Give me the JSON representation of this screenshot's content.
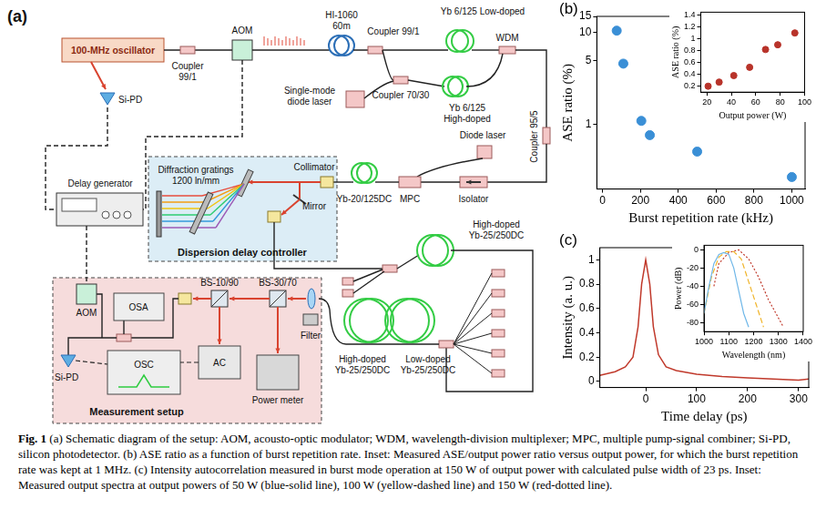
{
  "diagram": {
    "labels": [
      {
        "text": "(a)"
      },
      {
        "text": "100-MHz oscillator"
      },
      {
        "text": "Si-PD"
      },
      {
        "lines": [
          "Coupler",
          "99/1"
        ]
      },
      {
        "text": "AOM"
      },
      {
        "lines": [
          "HI-1060",
          "60m"
        ]
      },
      {
        "text": "Coupler 99/1"
      },
      {
        "text": "Yb 6/125 Low-doped"
      },
      {
        "text": "WDM"
      },
      {
        "text": "Coupler 70/30"
      },
      {
        "lines": [
          "Single-mode",
          "diode laser"
        ]
      },
      {
        "lines": [
          "Yb 6/125",
          "High-doped"
        ]
      },
      {
        "text": "Coupler 95/5"
      },
      {
        "text": "Diode laser"
      },
      {
        "text": "MPC"
      },
      {
        "text": "Isolator"
      },
      {
        "text": "Yb-20/125DC"
      },
      {
        "text": "Collimator"
      },
      {
        "lines": [
          "Diffraction gratings",
          "1200 ln/mm"
        ]
      },
      {
        "text": "Mirror"
      },
      {
        "text": "Dispersion delay controller"
      },
      {
        "text": "Delay generator"
      },
      {
        "lines": [
          "High-doped",
          "Yb-25/250DC"
        ]
      },
      {
        "text": "AOM"
      },
      {
        "text": "Measurement setup"
      },
      {
        "text": "OSA"
      },
      {
        "text": "BS-10/90"
      },
      {
        "text": "BS-30/70"
      },
      {
        "text": "Filter"
      },
      {
        "lines": [
          "High-doped",
          "Yb-25/250DC"
        ]
      },
      {
        "lines": [
          "Low-doped",
          "Yb-25/250DC"
        ]
      },
      {
        "text": "OSC"
      },
      {
        "text": "AC"
      },
      {
        "text": "Power meter"
      },
      {
        "text": "Si-PD"
      }
    ]
  },
  "chart_data": [
    {
      "type": "scatter",
      "title": "(b)",
      "x_label": "Burst repetition rate (kHz)",
      "y_label": "ASE ratio (%)",
      "x": [
        75,
        110,
        205,
        250,
        500,
        1000
      ],
      "values": [
        10.5,
        4.6,
        1.1,
        0.77,
        0.51,
        0.27
      ],
      "color": "#3a8fd6",
      "marker": "circle",
      "xlim": [
        -30,
        1070
      ],
      "ylim": [
        0.2,
        15
      ],
      "xticks": [
        0,
        200,
        400,
        600,
        800,
        1000
      ],
      "yticks": [
        1,
        5,
        10,
        15
      ],
      "log": "y",
      "grid": false
    },
    {
      "type": "scatter",
      "x_label": "Output power (W)",
      "y_label": "ASE ratio (%)",
      "x": [
        21,
        30,
        42,
        55,
        68,
        78,
        92
      ],
      "values": [
        0.2,
        0.27,
        0.38,
        0.52,
        0.82,
        0.9,
        1.1
      ],
      "color": "#b8332a",
      "marker": "circle",
      "xlim": [
        15,
        100
      ],
      "ylim": [
        0.1,
        1.45
      ],
      "xticks": [
        20,
        40,
        60,
        80,
        100
      ],
      "yticks": [
        0.2,
        0.4,
        0.6,
        0.8,
        1,
        1.2,
        1.4
      ],
      "grid": false
    },
    {
      "type": "line",
      "title": "(c)",
      "x_label": "Time delay (ps)",
      "y_label": "Intensity (a. u.)",
      "x": [
        -90,
        -60,
        -40,
        -25,
        -15,
        -8,
        0,
        8,
        15,
        25,
        40,
        60,
        100,
        150,
        200,
        250,
        300,
        320
      ],
      "values": [
        0.05,
        0.08,
        0.12,
        0.2,
        0.45,
        0.8,
        1.0,
        0.8,
        0.45,
        0.22,
        0.12,
        0.09,
        0.06,
        0.04,
        0.03,
        0.02,
        0.01,
        0.02
      ],
      "color": "#c0392b",
      "line_style": "solid",
      "xlim": [
        -90,
        320
      ],
      "ylim": [
        -0.05,
        1.1
      ],
      "xticks": [
        0,
        100,
        200,
        300
      ],
      "yticks": [
        0,
        0.2,
        0.4,
        0.6,
        0.8,
        1
      ],
      "grid": false
    },
    {
      "type": "line",
      "x_label": "Wavelength (nm)",
      "y_label": "Power (dB)",
      "series": [
        {
          "color": "#6fb7e8",
          "line_style": "solid",
          "x": [
            1000,
            1020,
            1040,
            1060,
            1080,
            1100,
            1120,
            1140,
            1160,
            1180
          ],
          "values": [
            -70,
            -40,
            -15,
            -5,
            -3,
            -5,
            -20,
            -45,
            -70,
            -85
          ]
        },
        {
          "color": "#f0b429",
          "line_style": "dashed",
          "x": [
            1000,
            1030,
            1060,
            1090,
            1120,
            1150,
            1180,
            1210,
            1240
          ],
          "values": [
            -70,
            -30,
            -8,
            -2,
            -2,
            -10,
            -35,
            -60,
            -85
          ]
        },
        {
          "color": "#c0392b",
          "line_style": "dotted",
          "x": [
            1040,
            1060,
            1100,
            1140,
            1180,
            1220,
            1260,
            1300,
            1320
          ],
          "values": [
            -40,
            -15,
            -3,
            0,
            -10,
            -30,
            -55,
            -75,
            -85
          ]
        }
      ],
      "xlim": [
        1000,
        1400
      ],
      "ylim": [
        -90,
        5
      ],
      "xticks": [
        1000,
        1100,
        1200,
        1300,
        1400
      ],
      "yticks": [
        -80,
        -60,
        -40,
        -20,
        0
      ],
      "grid": false
    }
  ],
  "caption": {
    "label": "Fig. 1",
    "text": "(a) Schematic diagram of the setup: AOM, acousto-optic modulator; WDM, wavelength-division multiplexer; MPC, multiple pump-signal combiner; Si-PD, silicon photodetector. (b) ASE ratio as a function of burst repetition rate. Inset: Measured ASE/output power ratio versus output power, for which the burst repetition rate was kept at 1 MHz. (c) Intensity autocorrelation measured in burst mode operation at 150 W of output power with calculated pulse width of 23 ps. Inset: Measured output spectra at output powers of 50 W (blue-solid line), 100 W (yellow-dashed line) and 150 W (red-dotted line)."
  }
}
